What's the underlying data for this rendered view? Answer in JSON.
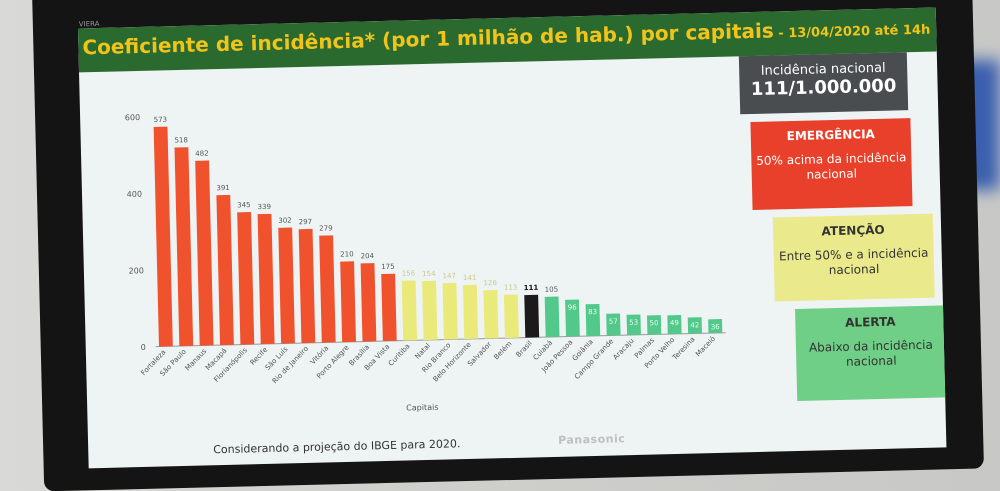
{
  "header": {
    "title": "Coeficiente de incidência* (por 1 milhão de hab.) por capitais",
    "date": " - 13/04/2020 até 14h"
  },
  "tv": {
    "brand": "Panasonic",
    "model": "VIERA"
  },
  "panels": {
    "national": {
      "label": "Incidência nacional",
      "value": "111/1.000.000"
    },
    "emergency": {
      "heading": "EMERGÊNCIA",
      "text": "50% acima da incidência nacional",
      "color": "#e8402a"
    },
    "attention": {
      "heading": "ATENÇÃO",
      "text": "Entre 50% e a incidência nacional",
      "color": "#eaea8c"
    },
    "alert": {
      "heading": "ALERTA",
      "text": "Abaixo da incidência nacional",
      "color": "#6fcf86"
    }
  },
  "footnote": "Considerando a projeção do IBGE para 2020.",
  "chart_data": {
    "type": "bar",
    "title": "",
    "xlabel": "Capitais",
    "ylabel": "",
    "ylim": [
      0,
      600
    ],
    "yticks": [
      0,
      200,
      400,
      600
    ],
    "grid": false,
    "categories": [
      "Fortaleza",
      "São Paulo",
      "Manaus",
      "Macapá",
      "Florianópolis",
      "Recife",
      "São Luís",
      "Rio de Janeiro",
      "Vitória",
      "Porto Alegre",
      "Brasília",
      "Boa Vista",
      "Curitiba",
      "Natal",
      "Rio Branco",
      "Belo Horizonte",
      "Salvador",
      "Belém",
      "Brasil",
      "Cuiabá",
      "João Pessoa",
      "Goiânia",
      "Campo Grande",
      "Aracaju",
      "Palmas",
      "Porto Velho",
      "Teresina",
      "Maceió"
    ],
    "values": [
      573,
      518,
      482,
      391,
      345,
      339,
      302,
      297,
      279,
      210,
      204,
      175,
      156,
      154,
      147,
      141,
      126,
      113,
      111,
      105,
      96,
      83,
      57,
      53,
      50,
      49,
      42,
      36
    ],
    "levels": [
      "emergency",
      "emergency",
      "emergency",
      "emergency",
      "emergency",
      "emergency",
      "emergency",
      "emergency",
      "emergency",
      "emergency",
      "emergency",
      "emergency",
      "attention",
      "attention",
      "attention",
      "attention",
      "attention",
      "attention",
      "national",
      "alert",
      "alert",
      "alert",
      "alert",
      "alert",
      "alert",
      "alert",
      "alert",
      "alert"
    ],
    "colors": {
      "emergency": "#f0522e",
      "attention": "#eaea7a",
      "national": "#1b1b1b",
      "alert": "#52c98a"
    }
  }
}
